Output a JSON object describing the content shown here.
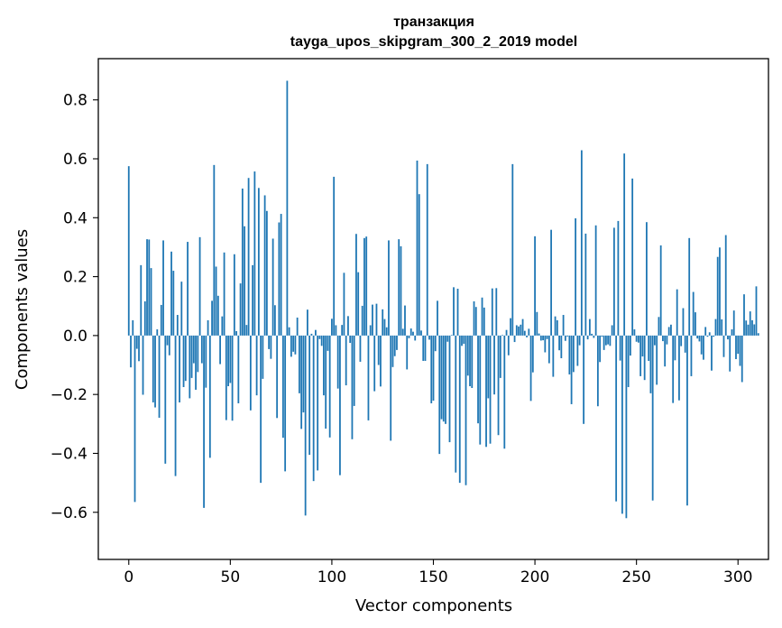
{
  "chart_data": {
    "type": "bar",
    "title": "транзакция",
    "subtitle": "tayga_upos_skipgram_300_2_2019 model",
    "xlabel": "Vector components",
    "ylabel": "Components values",
    "xlim": [
      -15,
      315
    ],
    "ylim": [
      -0.76,
      0.94
    ],
    "xticks": [
      0,
      50,
      100,
      150,
      200,
      250,
      300
    ],
    "yticks": [
      -0.6,
      -0.4,
      -0.2,
      0.0,
      0.2,
      0.4,
      0.6,
      0.8
    ],
    "ytick_labels": [
      "−0.6",
      "−0.4",
      "−0.2",
      "0.0",
      "0.2",
      "0.4",
      "0.6",
      "0.8"
    ],
    "bar_color": "#1f77b4",
    "values": [
      0.575,
      -0.108,
      0.052,
      -0.565,
      -0.045,
      -0.087,
      0.239,
      -0.201,
      0.116,
      0.327,
      0.326,
      0.229,
      -0.227,
      -0.244,
      0.021,
      -0.279,
      0.104,
      0.323,
      -0.435,
      -0.033,
      -0.067,
      0.285,
      0.22,
      -0.477,
      0.07,
      -0.227,
      0.183,
      -0.175,
      -0.154,
      0.318,
      -0.213,
      -0.144,
      -0.094,
      -0.184,
      -0.124,
      0.334,
      -0.094,
      -0.585,
      -0.177,
      0.052,
      -0.415,
      0.118,
      0.579,
      0.234,
      0.135,
      -0.097,
      0.065,
      0.282,
      -0.287,
      -0.172,
      -0.161,
      -0.289,
      0.276,
      0.015,
      -0.23,
      0.177,
      0.499,
      0.371,
      0.036,
      0.535,
      -0.254,
      0.239,
      0.557,
      -0.203,
      0.501,
      -0.5,
      -0.147,
      0.476,
      0.423,
      -0.046,
      -0.079,
      0.329,
      0.103,
      -0.28,
      0.384,
      0.413,
      -0.347,
      -0.461,
      0.865,
      0.028,
      -0.072,
      -0.055,
      -0.064,
      0.061,
      -0.196,
      -0.317,
      -0.261,
      -0.611,
      0.088,
      -0.405,
      0.006,
      -0.494,
      0.019,
      -0.458,
      -0.012,
      -0.035,
      -0.203,
      -0.316,
      -0.052,
      -0.346,
      0.057,
      0.539,
      0.035,
      -0.18,
      -0.474,
      0.036,
      0.213,
      -0.169,
      0.066,
      -0.025,
      -0.352,
      -0.239,
      0.345,
      0.215,
      -0.089,
      0.101,
      0.331,
      0.336,
      -0.288,
      0.035,
      0.105,
      -0.189,
      0.108,
      -0.1,
      -0.173,
      0.089,
      0.056,
      0.028,
      0.323,
      -0.357,
      -0.107,
      -0.07,
      -0.049,
      0.327,
      0.303,
      0.023,
      0.102,
      -0.115,
      -0.009,
      0.024,
      0.013,
      -0.017,
      0.594,
      0.48,
      0.017,
      -0.086,
      -0.086,
      0.582,
      -0.014,
      -0.23,
      -0.221,
      -0.053,
      0.118,
      -0.402,
      -0.284,
      -0.292,
      -0.3,
      -0.021,
      -0.362,
      0.002,
      0.164,
      -0.465,
      0.159,
      -0.5,
      -0.035,
      -0.028,
      -0.508,
      -0.136,
      -0.172,
      -0.178,
      0.116,
      0.097,
      -0.298,
      -0.37,
      0.129,
      0.095,
      -0.378,
      -0.213,
      -0.367,
      0.16,
      -0.2,
      0.161,
      -0.338,
      -0.144,
      0.002,
      -0.384,
      0.019,
      -0.067,
      0.059,
      0.582,
      -0.022,
      0.035,
      0.031,
      0.037,
      0.056,
      0.016,
      -0.006,
      0.023,
      -0.222,
      -0.125,
      0.337,
      0.08,
      0.007,
      -0.017,
      -0.016,
      -0.057,
      -0.012,
      -0.094,
      0.359,
      -0.14,
      0.065,
      0.052,
      -0.05,
      -0.077,
      0.07,
      -0.018,
      -0.003,
      -0.132,
      -0.233,
      -0.124,
      0.398,
      -0.103,
      -0.033,
      0.629,
      -0.3,
      0.346,
      -0.013,
      0.056,
      0.006,
      -0.008,
      0.374,
      -0.24,
      -0.09,
      -0.004,
      -0.049,
      -0.033,
      -0.03,
      -0.035,
      0.035,
      0.366,
      -0.563,
      0.389,
      -0.085,
      -0.605,
      0.618,
      -0.62,
      -0.175,
      -0.068,
      0.533,
      0.021,
      -0.021,
      -0.024,
      -0.138,
      -0.071,
      -0.151,
      0.385,
      -0.086,
      -0.196,
      -0.56,
      -0.033,
      -0.167,
      0.063,
      0.306,
      -0.019,
      -0.105,
      -0.03,
      0.029,
      0.037,
      -0.229,
      -0.084,
      0.157,
      -0.22,
      -0.036,
      0.093,
      -0.058,
      -0.577,
      0.331,
      -0.138,
      0.148,
      0.079,
      -0.01,
      -0.02,
      -0.064,
      -0.082,
      0.029,
      -0.004,
      0.011,
      -0.119,
      -0.004,
      0.056,
      0.267,
      0.299,
      0.055,
      -0.073,
      0.341,
      -0.013,
      -0.122,
      0.021,
      0.085,
      -0.08,
      -0.062,
      -0.103,
      -0.158,
      0.14,
      0.051,
      0.037,
      0.082,
      0.052,
      0.038,
      0.167,
      0.008
    ]
  }
}
